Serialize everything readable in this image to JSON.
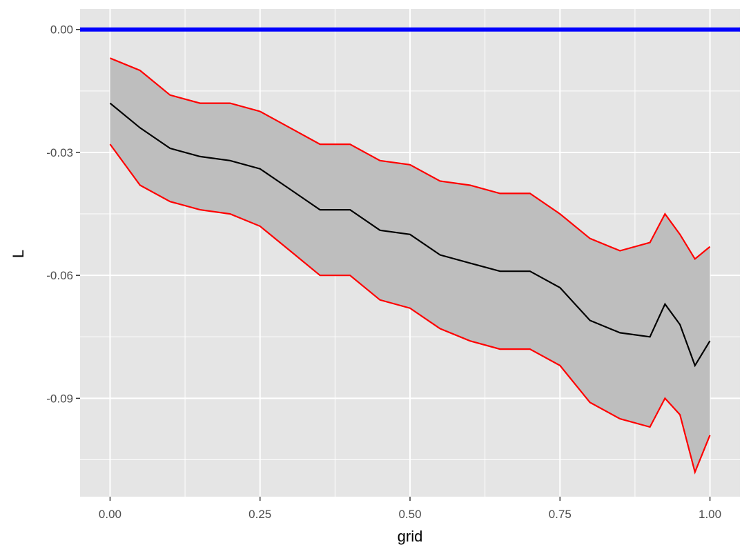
{
  "chart_data": {
    "type": "line",
    "title": "",
    "xlabel": "grid",
    "ylabel": "L",
    "xlim": [
      -0.05,
      1.05
    ],
    "ylim": [
      -0.114,
      0.005
    ],
    "x_ticks": [
      0.0,
      0.25,
      0.5,
      0.75,
      1.0
    ],
    "x_tick_labels": [
      "0.00",
      "0.25",
      "0.50",
      "0.75",
      "1.00"
    ],
    "y_ticks": [
      0.0,
      -0.03,
      -0.06,
      -0.09
    ],
    "y_tick_labels": [
      "0.00",
      "-0.03",
      "-0.06",
      "-0.09"
    ],
    "grid": true,
    "legend": "none",
    "colors": {
      "panel": "#e5e5e5",
      "gridline": "#ffffff",
      "band": "#bebebe",
      "bounds": "#ff0000",
      "estimate": "#000000",
      "reference": "#0000ff"
    },
    "reference_line": {
      "y": 0.0
    },
    "x": [
      0.0,
      0.05,
      0.1,
      0.15,
      0.2,
      0.25,
      0.3,
      0.35,
      0.4,
      0.45,
      0.5,
      0.55,
      0.6,
      0.65,
      0.7,
      0.75,
      0.8,
      0.85,
      0.9,
      0.925,
      0.95,
      0.975,
      1.0
    ],
    "series": [
      {
        "role": "upper",
        "values": [
          -0.007,
          -0.01,
          -0.016,
          -0.018,
          -0.018,
          -0.02,
          -0.024,
          -0.028,
          -0.028,
          -0.032,
          -0.033,
          -0.037,
          -0.038,
          -0.04,
          -0.04,
          -0.045,
          -0.051,
          -0.054,
          -0.052,
          -0.045,
          -0.05,
          -0.056,
          -0.053
        ]
      },
      {
        "role": "lower",
        "values": [
          -0.028,
          -0.038,
          -0.042,
          -0.044,
          -0.045,
          -0.048,
          -0.054,
          -0.06,
          -0.06,
          -0.066,
          -0.068,
          -0.073,
          -0.076,
          -0.078,
          -0.078,
          -0.082,
          -0.091,
          -0.095,
          -0.097,
          -0.09,
          -0.094,
          -0.108,
          -0.099
        ]
      },
      {
        "role": "estimate",
        "values": [
          -0.018,
          -0.024,
          -0.029,
          -0.031,
          -0.032,
          -0.034,
          -0.039,
          -0.044,
          -0.044,
          -0.049,
          -0.05,
          -0.055,
          -0.057,
          -0.059,
          -0.059,
          -0.063,
          -0.071,
          -0.074,
          -0.075,
          -0.067,
          -0.072,
          -0.082,
          -0.076
        ]
      }
    ]
  }
}
